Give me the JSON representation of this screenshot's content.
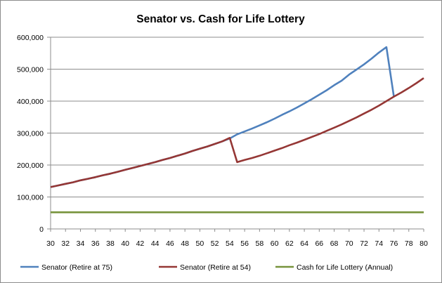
{
  "chart_data": {
    "type": "line",
    "title": "Senator vs. Cash for Life Lottery",
    "xlabel": "",
    "ylabel": "",
    "xlim": [
      30,
      80
    ],
    "ylim": [
      0,
      600000
    ],
    "y_ticks": [
      "0",
      "100,000",
      "200,000",
      "300,000",
      "400,000",
      "500,000",
      "600,000"
    ],
    "x_ticks": [
      "30",
      "32",
      "34",
      "36",
      "38",
      "40",
      "42",
      "44",
      "46",
      "48",
      "50",
      "52",
      "54",
      "56",
      "58",
      "60",
      "62",
      "64",
      "66",
      "68",
      "70",
      "72",
      "74",
      "76",
      "78",
      "80"
    ],
    "grid": "horizontal",
    "legend_position": "bottom",
    "series": [
      {
        "name": "Senator (Retire at 75)",
        "color": "#4f81bd",
        "points": [
          [
            30,
            131000
          ],
          [
            31,
            136000
          ],
          [
            32,
            141000
          ],
          [
            33,
            146000
          ],
          [
            34,
            152000
          ],
          [
            35,
            157000
          ],
          [
            36,
            162000
          ],
          [
            37,
            168000
          ],
          [
            38,
            173000
          ],
          [
            39,
            179000
          ],
          [
            40,
            185000
          ],
          [
            41,
            191000
          ],
          [
            42,
            197000
          ],
          [
            43,
            203000
          ],
          [
            44,
            209000
          ],
          [
            45,
            216000
          ],
          [
            46,
            222000
          ],
          [
            47,
            229000
          ],
          [
            48,
            236000
          ],
          [
            49,
            244000
          ],
          [
            50,
            251000
          ],
          [
            51,
            258000
          ],
          [
            52,
            266000
          ],
          [
            53,
            274000
          ],
          [
            54,
            283000
          ],
          [
            55,
            296000
          ],
          [
            56,
            305000
          ],
          [
            57,
            314000
          ],
          [
            58,
            324000
          ],
          [
            59,
            334000
          ],
          [
            60,
            345000
          ],
          [
            61,
            357000
          ],
          [
            62,
            368000
          ],
          [
            63,
            380000
          ],
          [
            64,
            393000
          ],
          [
            65,
            406000
          ],
          [
            66,
            420000
          ],
          [
            67,
            434000
          ],
          [
            68,
            450000
          ],
          [
            69,
            464000
          ],
          [
            70,
            483000
          ],
          [
            71,
            499000
          ],
          [
            72,
            515000
          ],
          [
            73,
            533000
          ],
          [
            74,
            552000
          ],
          [
            75,
            569000
          ],
          [
            76,
            414000
          ]
        ]
      },
      {
        "name": "Senator (Retire at 54)",
        "color": "#953735",
        "points": [
          [
            30,
            131000
          ],
          [
            31,
            136000
          ],
          [
            32,
            141000
          ],
          [
            33,
            146000
          ],
          [
            34,
            152000
          ],
          [
            35,
            157000
          ],
          [
            36,
            162000
          ],
          [
            37,
            168000
          ],
          [
            38,
            173000
          ],
          [
            39,
            179000
          ],
          [
            40,
            185000
          ],
          [
            41,
            191000
          ],
          [
            42,
            197000
          ],
          [
            43,
            203000
          ],
          [
            44,
            209000
          ],
          [
            45,
            216000
          ],
          [
            46,
            222000
          ],
          [
            47,
            229000
          ],
          [
            48,
            236000
          ],
          [
            49,
            244000
          ],
          [
            50,
            251000
          ],
          [
            51,
            258000
          ],
          [
            52,
            266000
          ],
          [
            53,
            274000
          ],
          [
            54,
            285000
          ],
          [
            55,
            209000
          ],
          [
            56,
            216000
          ],
          [
            57,
            222000
          ],
          [
            58,
            229000
          ],
          [
            59,
            237000
          ],
          [
            60,
            245000
          ],
          [
            61,
            253000
          ],
          [
            62,
            262000
          ],
          [
            63,
            270000
          ],
          [
            64,
            279000
          ],
          [
            65,
            288000
          ],
          [
            66,
            297000
          ],
          [
            67,
            307000
          ],
          [
            68,
            317000
          ],
          [
            69,
            327000
          ],
          [
            70,
            338000
          ],
          [
            71,
            349000
          ],
          [
            72,
            361000
          ],
          [
            73,
            373000
          ],
          [
            74,
            386000
          ],
          [
            75,
            400000
          ],
          [
            76,
            414000
          ],
          [
            77,
            427000
          ],
          [
            78,
            441000
          ],
          [
            79,
            456000
          ],
          [
            80,
            472000
          ]
        ]
      },
      {
        "name": "Cash for Life Lottery (Annual)",
        "color": "#77933c",
        "points": [
          [
            30,
            52000
          ],
          [
            80,
            52000
          ]
        ]
      }
    ]
  }
}
